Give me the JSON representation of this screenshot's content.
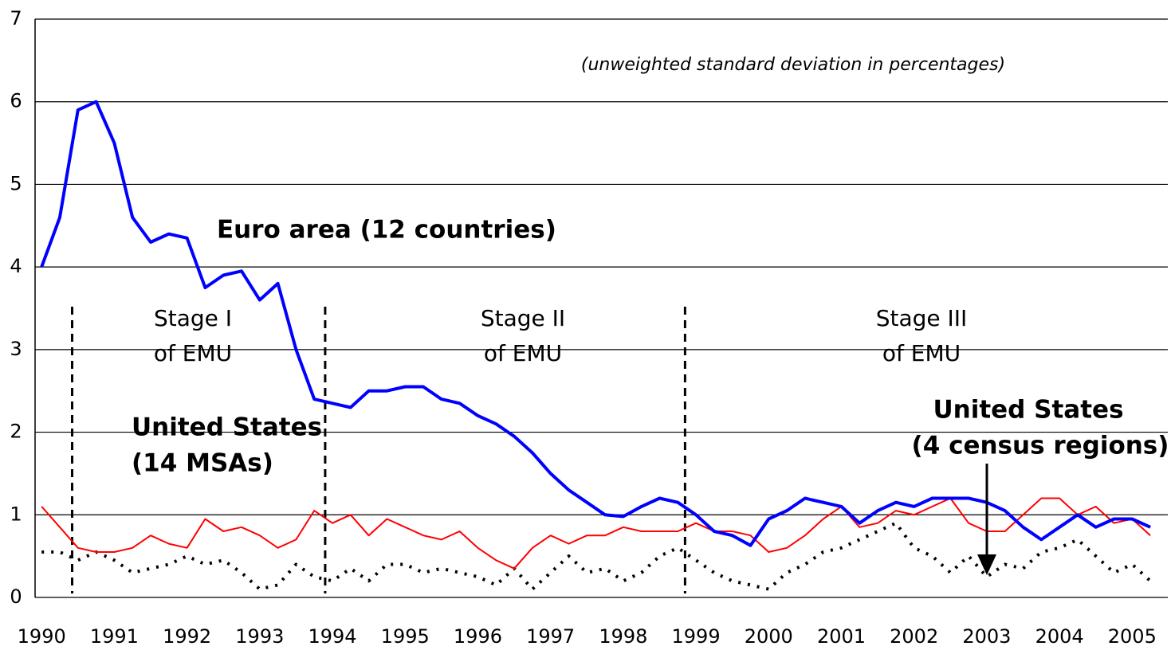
{
  "chart_data": {
    "type": "line",
    "subtitle": "(unweighted standard deviation in percentages)",
    "xlim": [
      1989.91,
      2005.49
    ],
    "xticks": [
      1990,
      1991,
      1992,
      1993,
      1994,
      1995,
      1996,
      1997,
      1998,
      1999,
      2000,
      2001,
      2002,
      2003,
      2004,
      2005
    ],
    "ylim": [
      0,
      7
    ],
    "yticks": [
      0,
      1,
      2,
      3,
      4,
      5,
      6,
      7
    ],
    "grid": true,
    "x": [
      1990,
      1990.25,
      1990.5,
      1990.75,
      1991,
      1991.25,
      1991.5,
      1991.75,
      1992,
      1992.25,
      1992.5,
      1992.75,
      1993,
      1993.25,
      1993.5,
      1993.75,
      1994,
      1994.25,
      1994.5,
      1994.75,
      1995,
      1995.25,
      1995.5,
      1995.75,
      1996,
      1996.25,
      1996.5,
      1996.75,
      1997,
      1997.25,
      1997.5,
      1997.75,
      1998,
      1998.25,
      1998.5,
      1998.75,
      1999,
      1999.25,
      1999.5,
      1999.75,
      2000,
      2000.25,
      2000.5,
      2000.75,
      2001,
      2001.25,
      2001.5,
      2001.75,
      2002,
      2002.25,
      2002.5,
      2002.75,
      2003,
      2003.25,
      2003.5,
      2003.75,
      2004,
      2004.25,
      2004.5,
      2004.75,
      2005,
      2005.25
    ],
    "series": [
      {
        "color": "#0000ff",
        "width": 4,
        "dash": "none",
        "values": [
          4.0,
          4.6,
          5.9,
          6.0,
          5.5,
          4.6,
          4.3,
          4.4,
          4.35,
          3.75,
          3.9,
          3.95,
          3.6,
          3.8,
          3.0,
          2.4,
          2.35,
          2.3,
          2.5,
          2.5,
          2.55,
          2.55,
          2.4,
          2.35,
          2.2,
          2.1,
          1.95,
          1.75,
          1.5,
          1.3,
          1.15,
          1.0,
          0.98,
          1.1,
          1.2,
          1.15,
          1.0,
          0.8,
          0.75,
          0.63,
          0.95,
          1.05,
          1.2,
          1.15,
          1.1,
          0.9,
          1.05,
          1.15,
          1.1,
          1.2,
          1.2,
          1.2,
          1.15,
          1.05,
          0.85,
          0.7,
          0.85,
          1.0,
          0.85,
          0.95,
          0.95,
          0.85
        ]
      },
      {
        "color": "#ff0000",
        "width": 2,
        "dash": "none",
        "values": [
          1.1,
          0.85,
          0.6,
          0.55,
          0.55,
          0.6,
          0.75,
          0.65,
          0.6,
          0.95,
          0.8,
          0.85,
          0.75,
          0.6,
          0.7,
          1.05,
          0.9,
          1.0,
          0.75,
          0.95,
          0.85,
          0.75,
          0.7,
          0.8,
          0.6,
          0.45,
          0.35,
          0.6,
          0.75,
          0.65,
          0.75,
          0.75,
          0.85,
          0.8,
          0.8,
          0.8,
          0.9,
          0.8,
          0.8,
          0.75,
          0.55,
          0.6,
          0.75,
          0.95,
          1.1,
          0.85,
          0.9,
          1.05,
          1.0,
          1.1,
          1.2,
          0.9,
          0.8,
          0.8,
          1.0,
          1.2,
          1.2,
          1.0,
          1.1,
          0.9,
          0.95,
          0.75
        ]
      },
      {
        "color": "#000000",
        "width": 4,
        "dash": "3 9",
        "values": [
          0.55,
          0.55,
          0.45,
          0.55,
          0.45,
          0.3,
          0.35,
          0.4,
          0.5,
          0.4,
          0.45,
          0.3,
          0.1,
          0.15,
          0.4,
          0.25,
          0.2,
          0.35,
          0.2,
          0.4,
          0.4,
          0.3,
          0.35,
          0.3,
          0.25,
          0.15,
          0.35,
          0.1,
          0.3,
          0.5,
          0.3,
          0.35,
          0.2,
          0.3,
          0.5,
          0.6,
          0.45,
          0.3,
          0.2,
          0.15,
          0.1,
          0.3,
          0.4,
          0.55,
          0.6,
          0.7,
          0.8,
          0.9,
          0.6,
          0.5,
          0.3,
          0.5,
          0.25,
          0.4,
          0.35,
          0.55,
          0.6,
          0.7,
          0.5,
          0.3,
          0.4,
          0.2
        ]
      }
    ],
    "vlines": [
      1990.42,
      1993.9,
      1998.85
    ],
    "annotations": [
      {
        "lines": [
          "Euro area (12 countries)"
        ]
      },
      {
        "lines": [
          "United States",
          "(14 MSAs)"
        ]
      },
      {
        "lines": [
          "United States",
          "(4 census regions)"
        ]
      },
      {
        "lines": [
          "Stage I",
          "of EMU"
        ]
      },
      {
        "lines": [
          "Stage II",
          "of EMU"
        ]
      },
      {
        "lines": [
          "Stage III",
          "of EMU"
        ]
      }
    ]
  }
}
